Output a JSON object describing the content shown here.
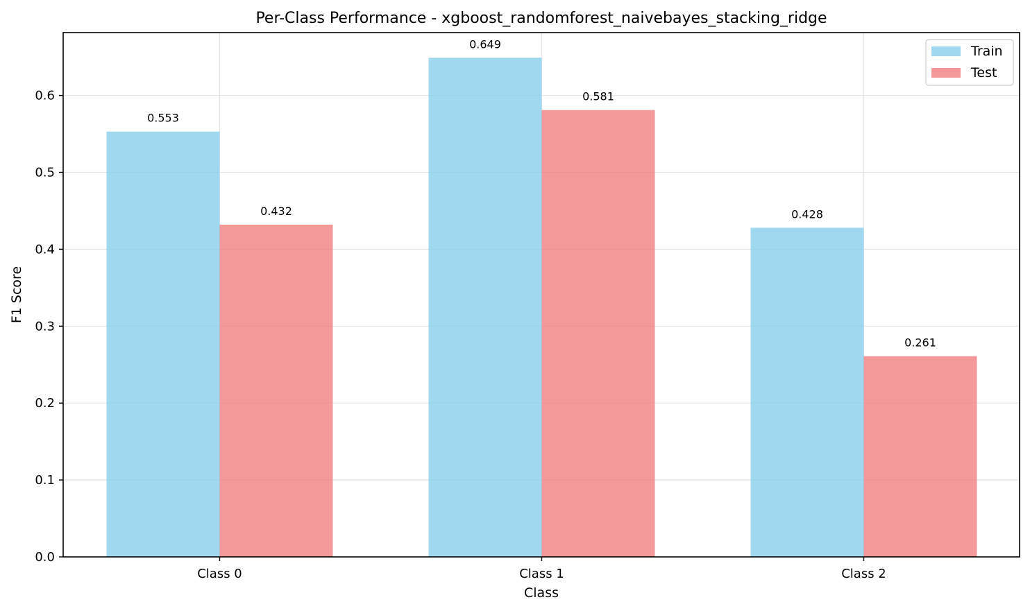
{
  "chart_data": {
    "type": "bar",
    "title": "Per-Class Performance - xgboost_randomforest_naivebayes_stacking_ridge",
    "xlabel": "Class",
    "ylabel": "F1 Score",
    "categories": [
      "Class 0",
      "Class 1",
      "Class 2"
    ],
    "series": [
      {
        "name": "Train",
        "values": [
          0.553,
          0.649,
          0.428
        ],
        "labels": [
          "0.553",
          "0.649",
          "0.428"
        ],
        "color": "#87CEEB"
      },
      {
        "name": "Test",
        "values": [
          0.432,
          0.581,
          0.261
        ],
        "labels": [
          "0.432",
          "0.581",
          "0.261"
        ],
        "color": "#F08080"
      }
    ],
    "ylim": [
      0,
      0.682
    ],
    "yticks": [
      0.0,
      0.1,
      0.2,
      0.3,
      0.4,
      0.5,
      0.6
    ],
    "ytick_labels": [
      "0.0",
      "0.1",
      "0.2",
      "0.3",
      "0.4",
      "0.5",
      "0.6"
    ],
    "grid": true,
    "legend_position": "top-right"
  }
}
